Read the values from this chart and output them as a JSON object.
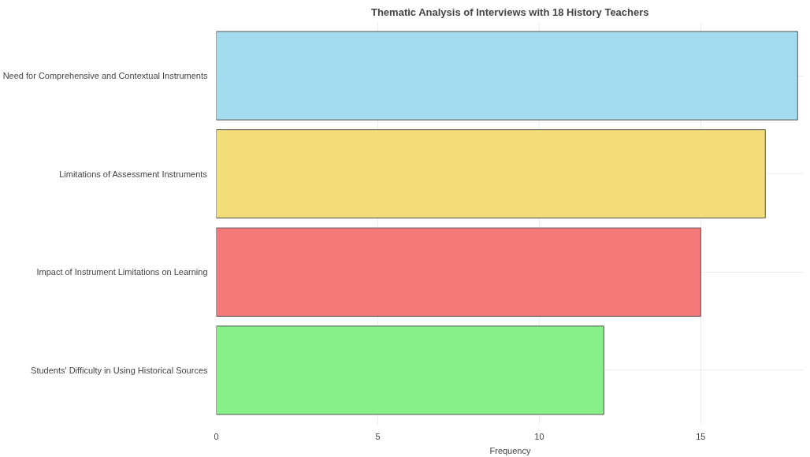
{
  "chart_data": {
    "type": "bar",
    "orientation": "horizontal",
    "title": "Thematic Analysis of Interviews with 18 History Teachers",
    "xlabel": "Frequency",
    "categories": [
      "Need for Comprehensive and Contextual Instruments",
      "Limitations of Assessment Instruments",
      "Impact of Instrument Limitations on Learning",
      "Students' Difficulty in Using Historical Sources"
    ],
    "values": [
      18,
      17,
      15,
      12
    ],
    "colors": [
      "#a3dbef",
      "#f3dd78",
      "#f47a7a",
      "#88f088"
    ],
    "xlim": [
      0,
      18.2
    ],
    "xticks": [
      0,
      5,
      10,
      15
    ],
    "grid": true
  }
}
